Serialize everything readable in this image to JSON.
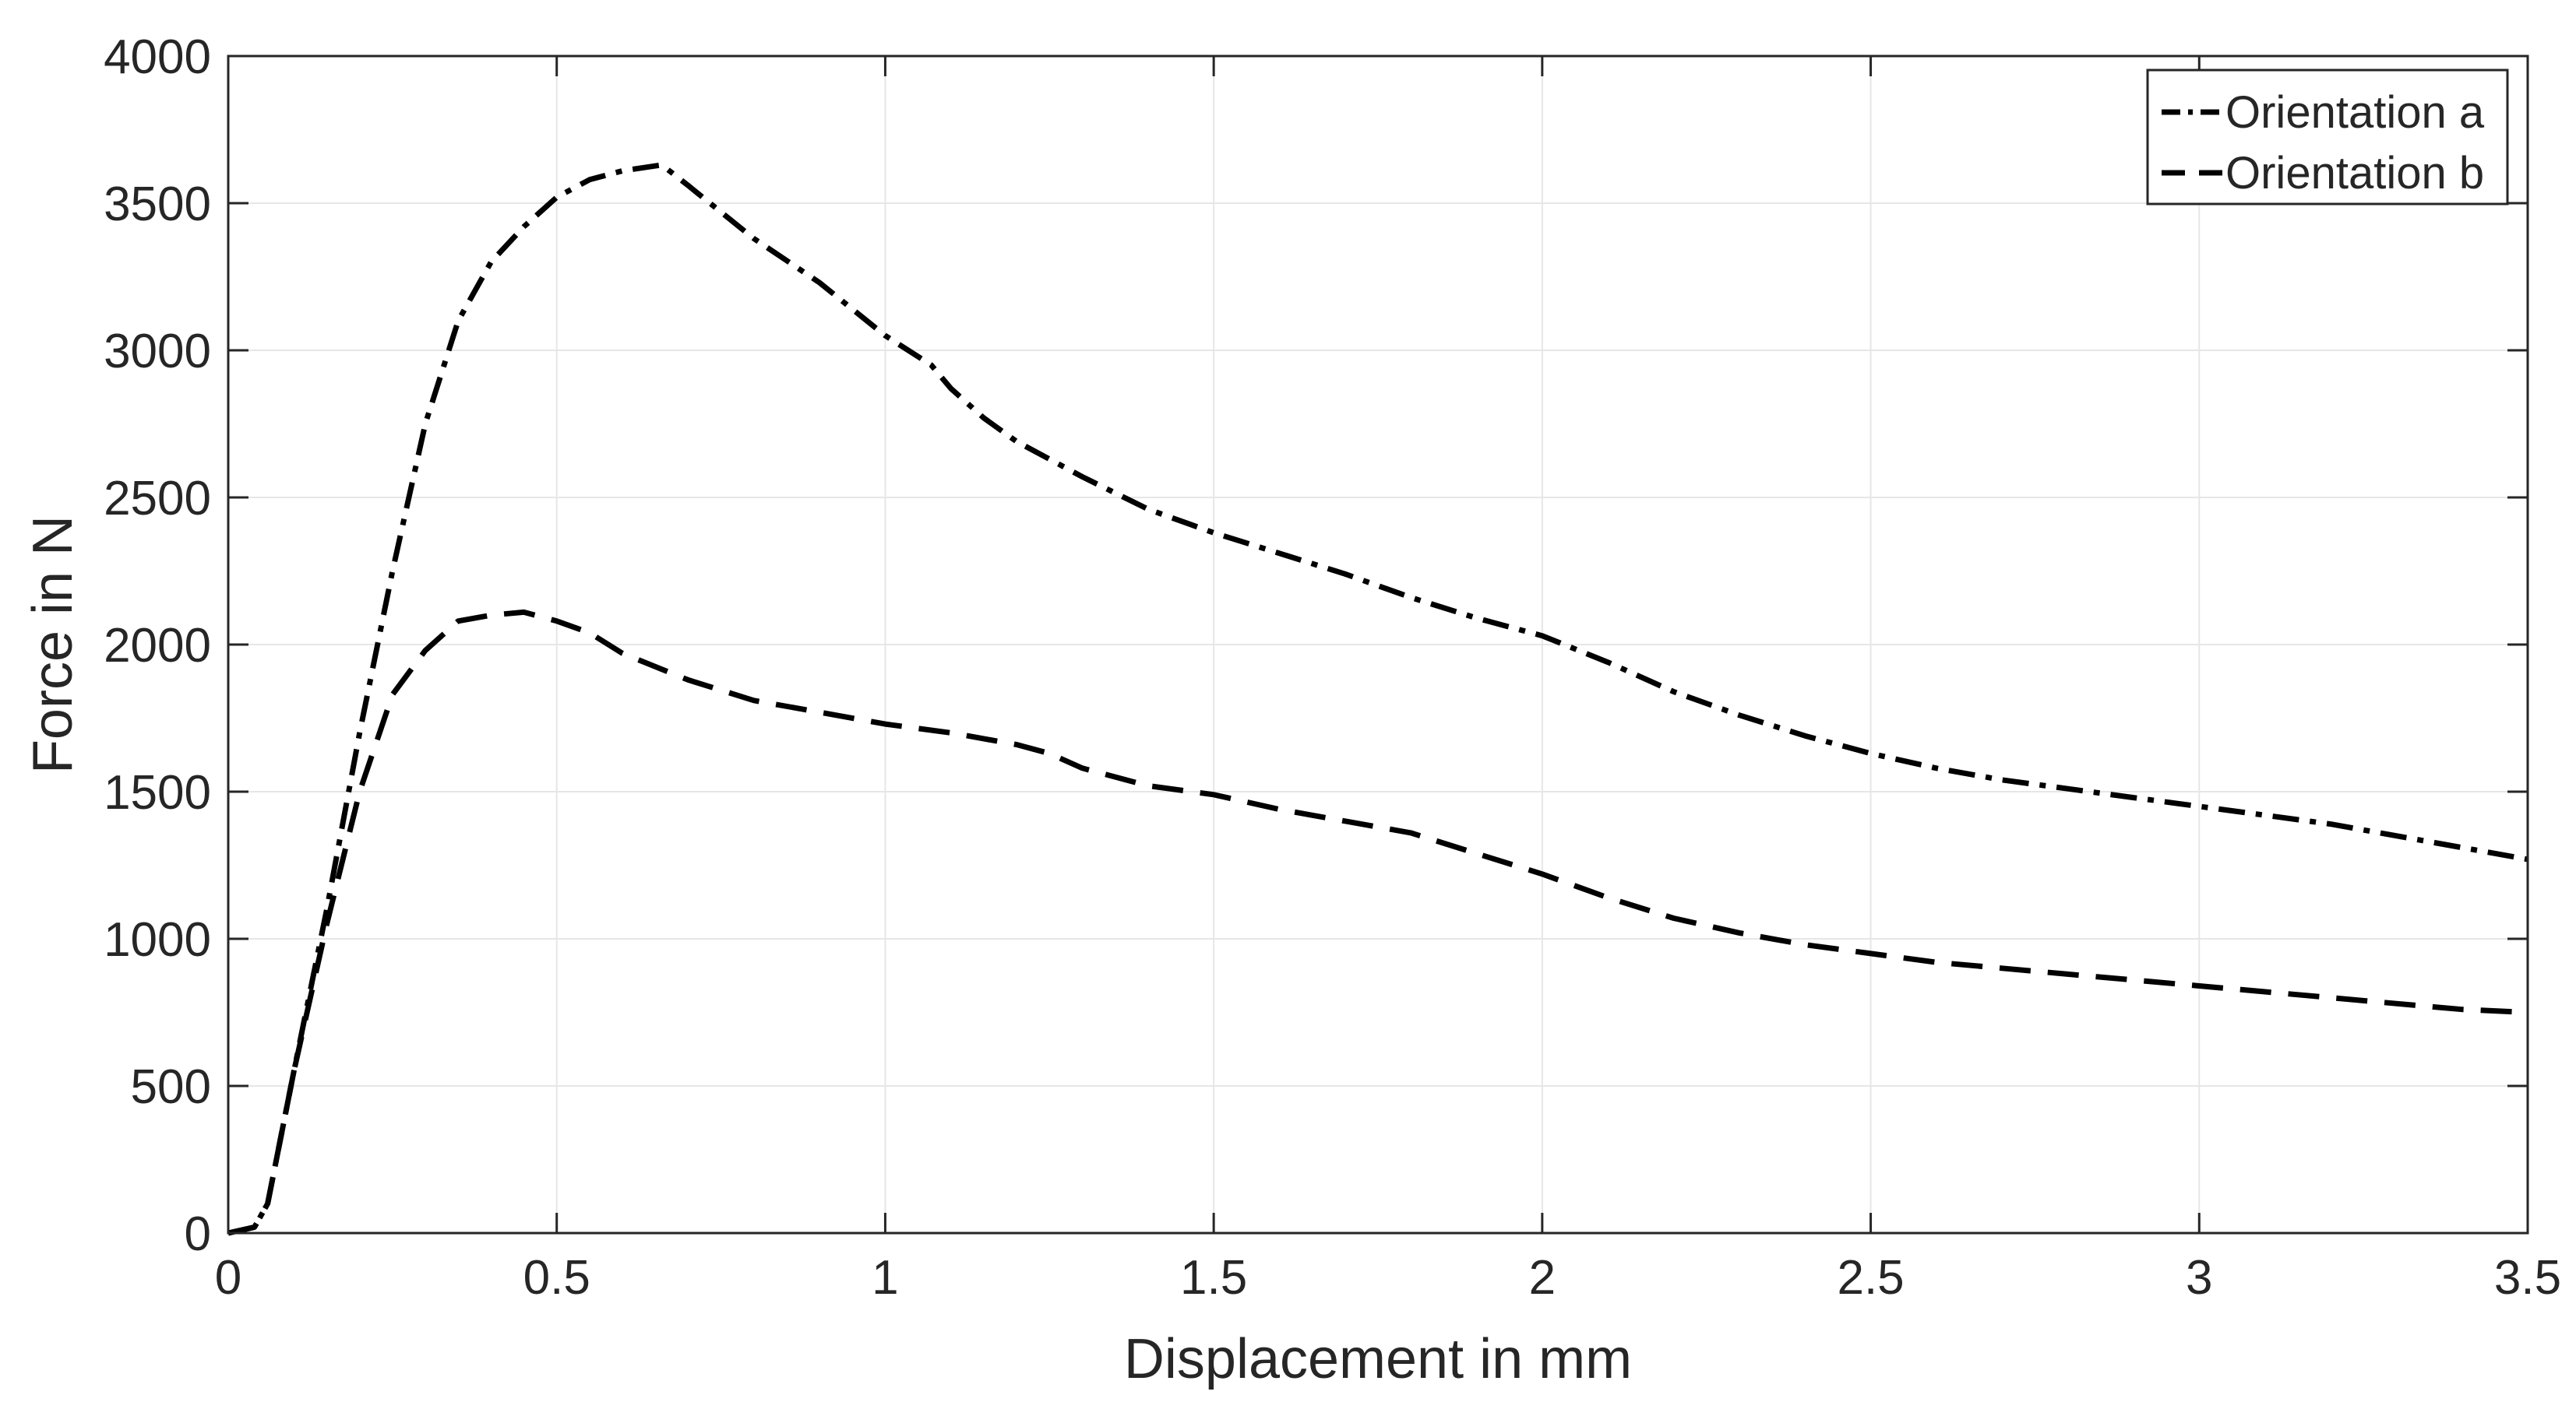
{
  "chart_data": {
    "type": "line",
    "title": "",
    "xlabel": "Displacement in mm",
    "ylabel": "Force in N",
    "xlim": [
      0,
      3.5
    ],
    "ylim": [
      0,
      4000
    ],
    "xticks": [
      0,
      0.5,
      1,
      1.5,
      2,
      2.5,
      3,
      3.5
    ],
    "xtick_labels": [
      "0",
      "0.5",
      "1",
      "1.5",
      "2",
      "2.5",
      "3",
      "3.5"
    ],
    "yticks": [
      0,
      500,
      1000,
      1500,
      2000,
      2500,
      3000,
      3500,
      4000
    ],
    "ytick_labels": [
      "0",
      "500",
      "1000",
      "1500",
      "2000",
      "2500",
      "3000",
      "3500",
      "4000"
    ],
    "grid": true,
    "legend_position": "top-right",
    "series": [
      {
        "name": "Orientation a",
        "line_style": "dash-dot",
        "color": "#000000",
        "x": [
          0,
          0.04,
          0.06,
          0.1,
          0.15,
          0.2,
          0.25,
          0.3,
          0.35,
          0.4,
          0.45,
          0.5,
          0.55,
          0.6,
          0.66,
          0.7,
          0.8,
          0.9,
          1.0,
          1.07,
          1.1,
          1.15,
          1.2,
          1.3,
          1.4,
          1.5,
          1.6,
          1.7,
          1.8,
          1.9,
          2.0,
          2.1,
          2.2,
          2.3,
          2.4,
          2.5,
          2.6,
          2.7,
          2.8,
          2.9,
          3.0,
          3.1,
          3.2,
          3.3,
          3.4,
          3.5
        ],
        "y": [
          0,
          20,
          100,
          550,
          1100,
          1700,
          2250,
          2750,
          3100,
          3300,
          3420,
          3520,
          3580,
          3610,
          3630,
          3560,
          3380,
          3230,
          3050,
          2950,
          2870,
          2770,
          2690,
          2570,
          2460,
          2380,
          2310,
          2240,
          2160,
          2090,
          2030,
          1940,
          1840,
          1760,
          1690,
          1630,
          1580,
          1540,
          1510,
          1480,
          1450,
          1420,
          1390,
          1350,
          1310,
          1270
        ]
      },
      {
        "name": "Orientation b",
        "line_style": "dashed",
        "color": "#000000",
        "x": [
          0,
          0.04,
          0.06,
          0.1,
          0.15,
          0.2,
          0.25,
          0.3,
          0.35,
          0.4,
          0.45,
          0.5,
          0.55,
          0.6,
          0.7,
          0.8,
          0.9,
          1.0,
          1.1,
          1.2,
          1.25,
          1.3,
          1.4,
          1.5,
          1.6,
          1.7,
          1.8,
          1.9,
          2.0,
          2.1,
          2.2,
          2.3,
          2.4,
          2.5,
          2.6,
          2.7,
          2.8,
          2.9,
          3.0,
          3.1,
          3.2,
          3.3,
          3.4,
          3.5
        ],
        "y": [
          0,
          20,
          100,
          550,
          1050,
          1500,
          1830,
          1980,
          2080,
          2100,
          2110,
          2080,
          2040,
          1970,
          1880,
          1810,
          1770,
          1730,
          1700,
          1660,
          1630,
          1580,
          1520,
          1490,
          1440,
          1400,
          1360,
          1290,
          1220,
          1140,
          1070,
          1020,
          980,
          950,
          920,
          900,
          880,
          860,
          840,
          820,
          800,
          780,
          760,
          750
        ]
      }
    ]
  }
}
